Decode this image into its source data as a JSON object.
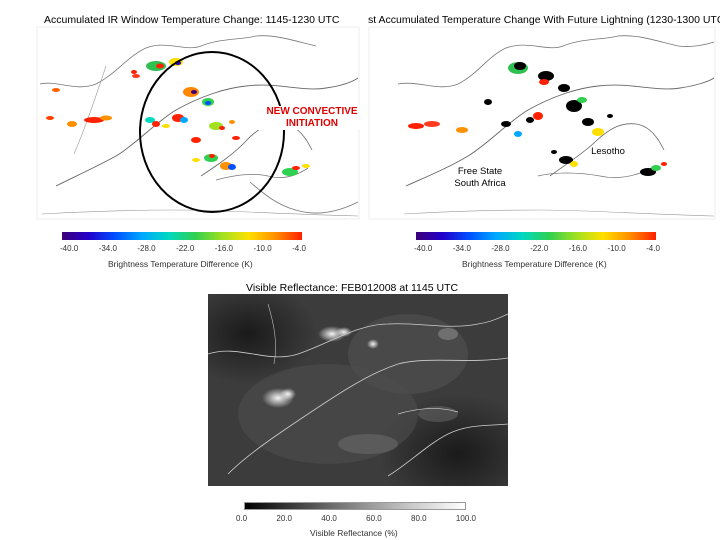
{
  "left_panel": {
    "title": "Accumulated IR Window Temperature Change: 1145-1230 UTC",
    "annotation": [
      "NEW CONVECTIVE",
      "INITIATION"
    ]
  },
  "right_panel": {
    "title": "st Accumulated Temperature Change With Future Lightning (1230-1300 UTC)",
    "labels": {
      "lesotho": "Lesotho",
      "free_state": "Free State",
      "south_africa": "South Africa"
    }
  },
  "temp_colorbar": {
    "ticks": [
      "-40.0",
      "-34.0",
      "-28.0",
      "-22.0",
      "-16.0",
      "-10.0",
      "-4.0"
    ],
    "label": "Brightness Temperature Difference (K)",
    "colors": [
      "#3c0078",
      "#2200cc",
      "#0050ff",
      "#00a8ff",
      "#00d8c0",
      "#30d050",
      "#a0e020",
      "#ffe000",
      "#ff9000",
      "#ff2000"
    ]
  },
  "visible_panel": {
    "title": "Visible Reflectance: FEB012008 at 1145 UTC",
    "colorbar_ticks": [
      "0.0",
      "20.0",
      "40.0",
      "60.0",
      "80.0",
      "100.0"
    ],
    "colorbar_label": "Visible Reflectance (%)"
  }
}
